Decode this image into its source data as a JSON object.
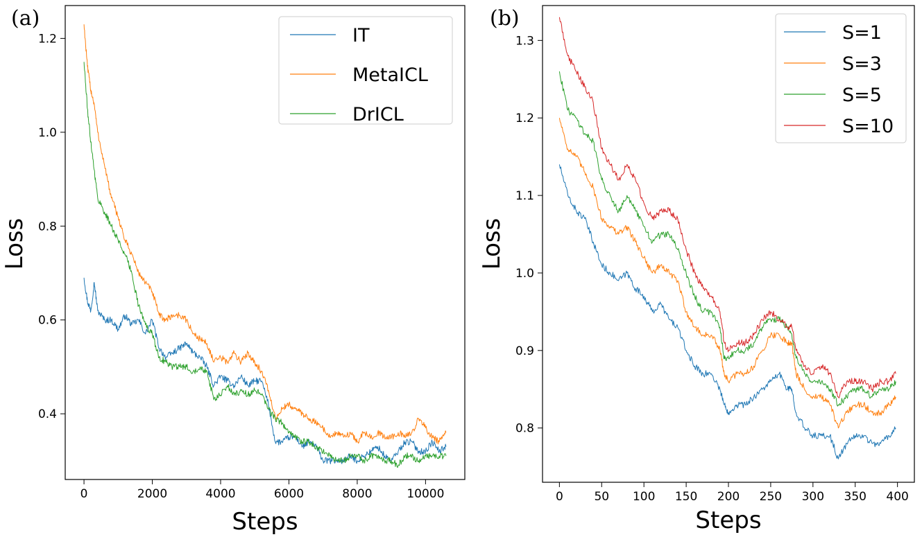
{
  "chart_data": [
    {
      "id": "a",
      "panel_label": "(a)",
      "type": "line",
      "title": "",
      "xlabel": "Steps",
      "ylabel": "Loss",
      "xlim": [
        -550,
        11150
      ],
      "ylim": [
        0.26,
        1.27
      ],
      "xticks": [
        0,
        2000,
        4000,
        6000,
        8000,
        10000
      ],
      "yticks": [
        0.4,
        0.6,
        0.8,
        1.0,
        1.2
      ],
      "ytick_labels": [
        "0.4",
        "0.6",
        "0.8",
        "1.0",
        "1.2"
      ],
      "legend_position": "top-right",
      "grid": false,
      "series": [
        {
          "name": "IT",
          "color": "#1f77b4",
          "x": [
            0,
            100,
            200,
            300,
            400,
            600,
            800,
            1000,
            1200,
            1400,
            1600,
            1800,
            2000,
            2200,
            2400,
            2600,
            2800,
            3000,
            3200,
            3400,
            3600,
            3800,
            4000,
            4200,
            4400,
            4600,
            4800,
            5000,
            5200,
            5400,
            5600,
            5800,
            6000,
            6200,
            6400,
            6600,
            6800,
            7000,
            7200,
            7400,
            7600,
            7800,
            8000,
            8200,
            8400,
            8600,
            8800,
            9000,
            9200,
            9400,
            9600,
            9800,
            10000,
            10200,
            10400,
            10600
          ],
          "y": [
            0.69,
            0.64,
            0.62,
            0.68,
            0.62,
            0.6,
            0.6,
            0.58,
            0.61,
            0.59,
            0.6,
            0.57,
            0.6,
            0.54,
            0.52,
            0.53,
            0.54,
            0.55,
            0.53,
            0.52,
            0.5,
            0.46,
            0.48,
            0.47,
            0.46,
            0.48,
            0.46,
            0.47,
            0.47,
            0.42,
            0.34,
            0.34,
            0.35,
            0.35,
            0.33,
            0.34,
            0.33,
            0.3,
            0.3,
            0.3,
            0.3,
            0.31,
            0.3,
            0.31,
            0.32,
            0.33,
            0.31,
            0.3,
            0.32,
            0.34,
            0.34,
            0.32,
            0.32,
            0.34,
            0.32,
            0.33
          ]
        },
        {
          "name": "MetaICL",
          "color": "#ff7f0e",
          "x": [
            0,
            100,
            200,
            300,
            400,
            600,
            800,
            1000,
            1200,
            1400,
            1600,
            1800,
            2000,
            2200,
            2400,
            2600,
            2800,
            3000,
            3200,
            3400,
            3600,
            3800,
            4000,
            4200,
            4400,
            4600,
            4800,
            5000,
            5200,
            5400,
            5600,
            5800,
            6000,
            6200,
            6400,
            6600,
            6800,
            7000,
            7200,
            7400,
            7600,
            7800,
            8000,
            8200,
            8400,
            8600,
            8800,
            9000,
            9200,
            9400,
            9600,
            9800,
            10000,
            10200,
            10400,
            10600
          ],
          "y": [
            1.23,
            1.14,
            1.09,
            1.06,
            1.0,
            0.93,
            0.86,
            0.82,
            0.77,
            0.74,
            0.7,
            0.68,
            0.66,
            0.61,
            0.6,
            0.61,
            0.61,
            0.6,
            0.57,
            0.56,
            0.55,
            0.51,
            0.52,
            0.51,
            0.53,
            0.51,
            0.53,
            0.51,
            0.49,
            0.45,
            0.39,
            0.41,
            0.42,
            0.41,
            0.4,
            0.39,
            0.38,
            0.37,
            0.35,
            0.36,
            0.35,
            0.36,
            0.34,
            0.36,
            0.35,
            0.36,
            0.35,
            0.35,
            0.36,
            0.35,
            0.36,
            0.39,
            0.37,
            0.35,
            0.34,
            0.36
          ]
        },
        {
          "name": "DrICL",
          "color": "#2ca02c",
          "x": [
            0,
            100,
            200,
            300,
            400,
            600,
            800,
            1000,
            1200,
            1400,
            1600,
            1800,
            2000,
            2200,
            2400,
            2600,
            2800,
            3000,
            3200,
            3400,
            3600,
            3800,
            4000,
            4200,
            4400,
            4600,
            4800,
            5000,
            5200,
            5400,
            5600,
            5800,
            6000,
            6200,
            6400,
            6600,
            6800,
            7000,
            7200,
            7400,
            7600,
            7800,
            8000,
            8200,
            8400,
            8600,
            8800,
            9000,
            9200,
            9400,
            9600,
            9800,
            10000,
            10200,
            10400,
            10600
          ],
          "y": [
            1.15,
            1.05,
            0.98,
            0.92,
            0.86,
            0.83,
            0.8,
            0.77,
            0.74,
            0.7,
            0.63,
            0.59,
            0.57,
            0.52,
            0.51,
            0.5,
            0.5,
            0.5,
            0.49,
            0.5,
            0.49,
            0.43,
            0.44,
            0.46,
            0.44,
            0.45,
            0.44,
            0.45,
            0.44,
            0.41,
            0.39,
            0.38,
            0.36,
            0.35,
            0.34,
            0.34,
            0.33,
            0.32,
            0.31,
            0.3,
            0.3,
            0.31,
            0.31,
            0.3,
            0.31,
            0.31,
            0.3,
            0.3,
            0.29,
            0.31,
            0.31,
            0.3,
            0.31,
            0.31,
            0.31,
            0.31
          ]
        }
      ]
    },
    {
      "id": "b",
      "panel_label": "(b)",
      "type": "line",
      "title": "",
      "xlabel": "Steps",
      "ylabel": "Loss",
      "xlim": [
        -20,
        420
      ],
      "ylim": [
        0.73,
        1.345
      ],
      "xticks": [
        0,
        50,
        100,
        150,
        200,
        250,
        300,
        350,
        400
      ],
      "yticks": [
        0.8,
        0.9,
        1.0,
        1.1,
        1.2,
        1.3
      ],
      "ytick_labels": [
        "0.8",
        "0.9",
        "1.0",
        "1.1",
        "1.2",
        "1.3"
      ],
      "legend_position": "top-right",
      "grid": false,
      "series": [
        {
          "name": "S=1",
          "color": "#1f77b4",
          "x": [
            0,
            10,
            20,
            30,
            40,
            50,
            60,
            70,
            80,
            90,
            100,
            110,
            120,
            130,
            140,
            150,
            160,
            170,
            180,
            190,
            195,
            200,
            210,
            220,
            230,
            240,
            250,
            260,
            270,
            275,
            280,
            290,
            300,
            310,
            320,
            330,
            340,
            350,
            360,
            370,
            380,
            390,
            398
          ],
          "y": [
            1.14,
            1.1,
            1.08,
            1.07,
            1.04,
            1.01,
            1.0,
            0.99,
            1.0,
            0.98,
            0.97,
            0.95,
            0.96,
            0.94,
            0.93,
            0.9,
            0.88,
            0.87,
            0.87,
            0.85,
            0.83,
            0.82,
            0.83,
            0.83,
            0.84,
            0.85,
            0.86,
            0.87,
            0.85,
            0.85,
            0.82,
            0.8,
            0.79,
            0.79,
            0.79,
            0.76,
            0.78,
            0.79,
            0.79,
            0.78,
            0.78,
            0.79,
            0.8
          ]
        },
        {
          "name": "S=3",
          "color": "#ff7f0e",
          "x": [
            0,
            10,
            20,
            30,
            40,
            50,
            60,
            70,
            80,
            90,
            100,
            110,
            120,
            130,
            140,
            150,
            160,
            170,
            180,
            190,
            195,
            200,
            210,
            220,
            230,
            240,
            250,
            260,
            270,
            275,
            280,
            290,
            300,
            310,
            320,
            330,
            340,
            350,
            360,
            370,
            380,
            390,
            398
          ],
          "y": [
            1.2,
            1.16,
            1.15,
            1.13,
            1.11,
            1.07,
            1.06,
            1.05,
            1.06,
            1.04,
            1.02,
            1.0,
            1.01,
            1.0,
            0.99,
            0.95,
            0.93,
            0.92,
            0.92,
            0.9,
            0.87,
            0.86,
            0.87,
            0.87,
            0.88,
            0.9,
            0.92,
            0.92,
            0.91,
            0.91,
            0.87,
            0.85,
            0.84,
            0.84,
            0.83,
            0.8,
            0.82,
            0.83,
            0.83,
            0.82,
            0.82,
            0.83,
            0.84
          ]
        },
        {
          "name": "S=5",
          "color": "#2ca02c",
          "x": [
            0,
            10,
            20,
            30,
            40,
            50,
            60,
            70,
            80,
            90,
            100,
            110,
            120,
            130,
            140,
            150,
            160,
            170,
            180,
            190,
            195,
            200,
            210,
            220,
            230,
            240,
            250,
            260,
            270,
            275,
            280,
            290,
            300,
            310,
            320,
            330,
            340,
            350,
            360,
            370,
            380,
            390,
            398
          ],
          "y": [
            1.26,
            1.21,
            1.2,
            1.18,
            1.17,
            1.12,
            1.1,
            1.08,
            1.1,
            1.08,
            1.06,
            1.04,
            1.05,
            1.05,
            1.03,
            1.0,
            0.97,
            0.95,
            0.95,
            0.93,
            0.89,
            0.89,
            0.9,
            0.9,
            0.91,
            0.93,
            0.94,
            0.94,
            0.93,
            0.92,
            0.89,
            0.87,
            0.86,
            0.86,
            0.85,
            0.83,
            0.84,
            0.85,
            0.85,
            0.84,
            0.85,
            0.85,
            0.86
          ]
        },
        {
          "name": "S=10",
          "color": "#d62728",
          "x": [
            0,
            10,
            20,
            30,
            40,
            50,
            60,
            70,
            80,
            90,
            100,
            110,
            120,
            130,
            140,
            150,
            160,
            170,
            180,
            190,
            195,
            200,
            210,
            220,
            230,
            240,
            250,
            260,
            270,
            275,
            280,
            290,
            300,
            310,
            320,
            330,
            340,
            350,
            360,
            370,
            380,
            390,
            398
          ],
          "y": [
            1.33,
            1.28,
            1.26,
            1.24,
            1.22,
            1.16,
            1.14,
            1.12,
            1.14,
            1.12,
            1.09,
            1.07,
            1.08,
            1.08,
            1.07,
            1.03,
            1.0,
            0.98,
            0.97,
            0.95,
            0.91,
            0.9,
            0.91,
            0.91,
            0.92,
            0.94,
            0.95,
            0.94,
            0.93,
            0.93,
            0.9,
            0.88,
            0.87,
            0.88,
            0.87,
            0.84,
            0.86,
            0.86,
            0.86,
            0.85,
            0.86,
            0.86,
            0.87
          ]
        }
      ]
    }
  ]
}
